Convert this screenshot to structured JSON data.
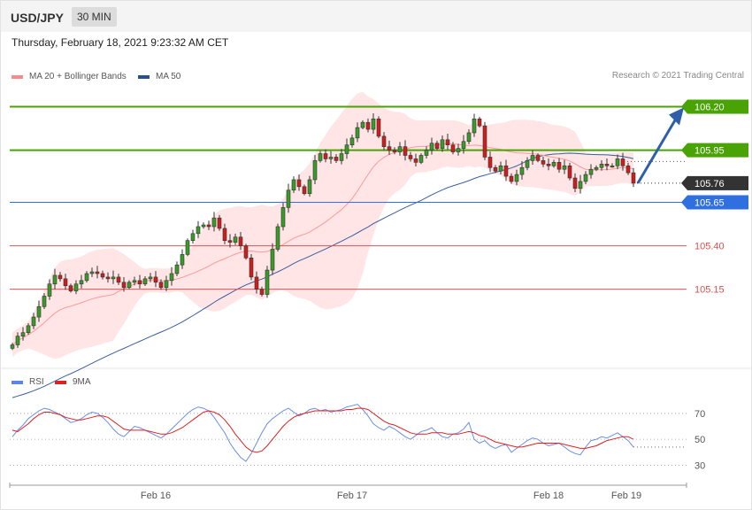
{
  "header": {
    "pair": "USD/JPY",
    "timeframe": "30 MIN"
  },
  "datetime": "Thursday, February 18, 2021 9:23:32 AM CET",
  "legend": {
    "bb_label": "MA 20 + Bollinger Bands",
    "ma50_label": "MA 50",
    "credit": "Research © 2021 Trading Central"
  },
  "rsi_legend": {
    "rsi_label": "RSI",
    "ma_label": "9MA"
  },
  "colors": {
    "resistance": "#4aa305",
    "support": "#2f6fe0",
    "minor_support": "#e05050",
    "current": "#333333",
    "arrow": "#2e5fa8",
    "bb": "#ff8a8a",
    "ma50": "#3a5fa0",
    "rsi": "#6a8ee8",
    "rsi_ma": "#e02020"
  },
  "chart_data": [
    {
      "type": "candlestick",
      "x_ticks": [
        "Feb 16",
        "Feb 17",
        "Feb 18",
        "Feb 19"
      ],
      "ylim": [
        104.7,
        106.33
      ],
      "levels": [
        {
          "value": 106.2,
          "label": "106.20",
          "kind": "resistance"
        },
        {
          "value": 105.95,
          "label": "105.95",
          "kind": "resistance"
        },
        {
          "value": 105.76,
          "label": "105.76",
          "kind": "current"
        },
        {
          "value": 105.65,
          "label": "105.65",
          "kind": "support"
        },
        {
          "value": 105.4,
          "label": "105.40",
          "kind": "minor_support"
        },
        {
          "value": 105.15,
          "label": "105.15",
          "kind": "minor_support"
        }
      ],
      "target_arrow": {
        "from": 105.76,
        "to": 106.18
      },
      "closes": [
        104.83,
        104.88,
        104.9,
        104.94,
        104.99,
        105.05,
        105.11,
        105.18,
        105.23,
        105.21,
        105.17,
        105.14,
        105.18,
        105.2,
        105.24,
        105.25,
        105.24,
        105.22,
        105.21,
        105.22,
        105.19,
        105.16,
        105.19,
        105.2,
        105.18,
        105.21,
        105.22,
        105.19,
        105.16,
        105.2,
        105.24,
        105.29,
        105.35,
        105.43,
        105.47,
        105.51,
        105.52,
        105.51,
        105.56,
        105.5,
        105.43,
        105.42,
        105.45,
        105.4,
        105.33,
        105.22,
        105.15,
        105.12,
        105.26,
        105.38,
        105.51,
        105.62,
        105.72,
        105.78,
        105.74,
        105.7,
        105.78,
        105.89,
        105.93,
        105.9,
        105.91,
        105.89,
        105.93,
        105.98,
        106.02,
        106.08,
        106.11,
        106.07,
        106.13,
        106.03,
        105.97,
        105.95,
        105.94,
        105.97,
        105.92,
        105.9,
        105.88,
        105.92,
        105.95,
        105.99,
        105.96,
        106.01,
        105.98,
        105.94,
        105.96,
        106.0,
        106.05,
        106.13,
        106.09,
        105.91,
        105.85,
        105.83,
        105.86,
        105.8,
        105.77,
        105.81,
        105.85,
        105.89,
        105.92,
        105.89,
        105.87,
        105.86,
        105.88,
        105.84,
        105.86,
        105.79,
        105.73,
        105.77,
        105.81,
        105.84,
        105.85,
        105.87,
        105.86,
        105.86,
        105.9,
        105.86,
        105.82,
        105.76
      ],
      "rsi": {
        "levels": [
          70,
          50,
          30
        ],
        "ylim": [
          20,
          85
        ],
        "rsi_values": [
          52,
          57,
          61,
          66,
          69,
          72,
          74,
          73,
          71,
          69,
          66,
          63,
          64,
          66,
          69,
          71,
          70,
          67,
          63,
          58,
          54,
          52,
          56,
          60,
          59,
          57,
          55,
          53,
          51,
          54,
          58,
          62,
          66,
          70,
          73,
          75,
          74,
          72,
          67,
          61,
          55,
          47,
          41,
          36,
          33,
          39,
          47,
          55,
          62,
          66,
          69,
          72,
          74,
          71,
          68,
          70,
          73,
          74,
          72,
          73,
          71,
          72,
          73,
          75,
          76,
          77,
          73,
          68,
          62,
          59,
          57,
          60,
          58,
          55,
          52,
          50,
          53,
          56,
          57,
          59,
          55,
          52,
          51,
          54,
          55,
          58,
          63,
          50,
          47,
          49,
          45,
          43,
          45,
          46,
          40,
          43,
          46,
          49,
          51,
          50,
          47,
          45,
          46,
          47,
          44,
          41,
          39,
          38,
          44,
          49,
          50,
          52,
          51,
          53,
          55,
          52,
          49,
          44
        ],
        "ma_values": [
          57,
          56,
          59,
          62,
          66,
          69,
          71,
          71,
          70,
          69,
          67,
          66,
          65,
          65,
          66,
          67,
          68,
          68,
          67,
          64,
          61,
          58,
          57,
          57,
          57,
          57,
          56,
          55,
          54,
          54,
          55,
          57,
          59,
          62,
          65,
          68,
          71,
          72,
          71,
          69,
          65,
          60,
          54,
          49,
          44,
          41,
          40,
          41,
          45,
          50,
          55,
          60,
          64,
          67,
          69,
          70,
          71,
          72,
          72,
          72,
          72,
          72,
          72,
          73,
          73,
          74,
          74,
          73,
          70,
          67,
          64,
          62,
          61,
          59,
          57,
          55,
          54,
          54,
          54,
          55,
          55,
          55,
          54,
          54,
          54,
          55,
          56,
          55,
          53,
          52,
          50,
          48,
          47,
          46,
          45,
          44,
          44,
          45,
          46,
          47,
          47,
          47,
          47,
          47,
          46,
          45,
          44,
          43,
          43,
          44,
          45,
          47,
          49,
          50,
          51,
          52,
          52,
          50
        ]
      }
    }
  ]
}
